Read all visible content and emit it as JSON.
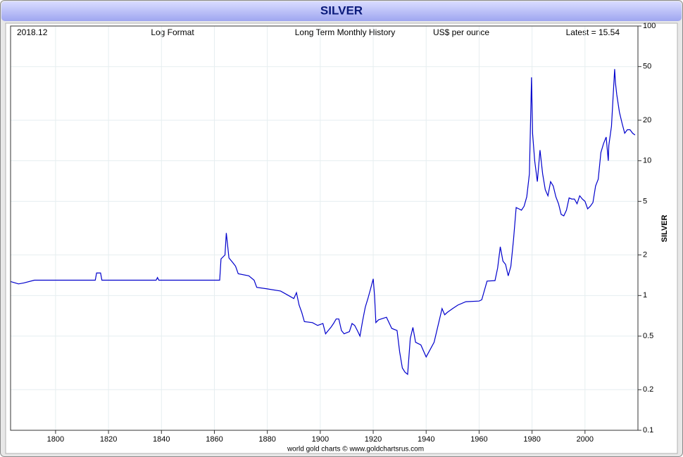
{
  "chart_data": {
    "type": "line",
    "title": "SILVER",
    "header_texts": [
      "2018.12",
      "Log Format",
      "Long Term Monthly History",
      "US$ per ounce",
      "Latest = 15.54"
    ],
    "y_axis_label": "SILVER",
    "footer": "world gold charts © www.goldchartsrus.com",
    "log_y": true,
    "grid": true,
    "xlim": [
      1783,
      2020
    ],
    "xticks": [
      1800,
      1820,
      1840,
      1860,
      1880,
      1900,
      1920,
      1940,
      1960,
      1980,
      2000
    ],
    "ylim": [
      0.1,
      100
    ],
    "yticks": [
      0.1,
      0.2,
      0.5,
      1,
      2,
      5,
      10,
      20,
      50,
      100
    ],
    "x": [
      1783,
      1786,
      1788,
      1792,
      1815,
      1815.5,
      1817,
      1817.5,
      1838,
      1838.5,
      1839,
      1862,
      1862.5,
      1864,
      1864.5,
      1865.5,
      1867,
      1868,
      1869,
      1873,
      1875,
      1876,
      1880,
      1885,
      1888,
      1890,
      1891,
      1892,
      1893,
      1894,
      1897,
      1899,
      1901,
      1902,
      1903,
      1904,
      1905,
      1906,
      1907,
      1908,
      1909,
      1910,
      1911,
      1912,
      1913,
      1914,
      1915,
      1916,
      1917,
      1918,
      1919,
      1920,
      1920.5,
      1921,
      1922,
      1925,
      1927,
      1929,
      1930,
      1931,
      1932,
      1933,
      1934,
      1935,
      1936,
      1938,
      1940,
      1943,
      1946,
      1947,
      1948,
      1950,
      1952,
      1955,
      1960,
      1961,
      1963,
      1966,
      1967,
      1968,
      1969,
      1970,
      1971,
      1972,
      1973,
      1974,
      1975,
      1976,
      1977,
      1978,
      1979,
      1979.8,
      1980.2,
      1981,
      1982,
      1983,
      1984,
      1985,
      1986,
      1987,
      1988,
      1989,
      1990,
      1991,
      1992,
      1993,
      1994,
      1995,
      1996,
      1997,
      1998,
      1999,
      2000,
      2001,
      2002,
      2003,
      2004,
      2005,
      2006,
      2007,
      2008,
      2008.8,
      2009,
      2010,
      2011.2,
      2011.5,
      2012,
      2013,
      2014,
      2015,
      2016,
      2017,
      2018,
      2018.9
    ],
    "series": [
      {
        "name": "SILVER",
        "color": "#0000cc",
        "values": [
          1.27,
          1.22,
          1.24,
          1.3,
          1.3,
          1.47,
          1.47,
          1.3,
          1.3,
          1.36,
          1.3,
          1.3,
          1.87,
          2.0,
          2.91,
          1.9,
          1.75,
          1.65,
          1.45,
          1.4,
          1.3,
          1.15,
          1.12,
          1.08,
          1.0,
          0.95,
          1.05,
          0.85,
          0.75,
          0.64,
          0.63,
          0.6,
          0.62,
          0.52,
          0.55,
          0.58,
          0.62,
          0.67,
          0.67,
          0.55,
          0.52,
          0.53,
          0.54,
          0.62,
          0.6,
          0.55,
          0.5,
          0.65,
          0.82,
          0.95,
          1.12,
          1.33,
          1.0,
          0.63,
          0.66,
          0.69,
          0.57,
          0.55,
          0.38,
          0.29,
          0.27,
          0.26,
          0.48,
          0.58,
          0.45,
          0.43,
          0.35,
          0.45,
          0.8,
          0.72,
          0.75,
          0.8,
          0.85,
          0.9,
          0.91,
          0.93,
          1.28,
          1.29,
          1.6,
          2.3,
          1.8,
          1.7,
          1.4,
          1.65,
          2.6,
          4.5,
          4.4,
          4.3,
          4.6,
          5.4,
          8,
          41.6,
          16,
          10,
          7,
          12,
          8,
          6.1,
          5.5,
          7.0,
          6.5,
          5.4,
          4.8,
          4.0,
          3.9,
          4.3,
          5.3,
          5.2,
          5.2,
          4.8,
          5.5,
          5.2,
          5.0,
          4.4,
          4.6,
          4.9,
          6.5,
          7.3,
          11.5,
          13.4,
          15,
          10,
          13,
          18,
          47.9,
          38,
          31,
          23,
          19,
          16,
          17,
          17,
          16,
          15.54
        ]
      }
    ]
  }
}
